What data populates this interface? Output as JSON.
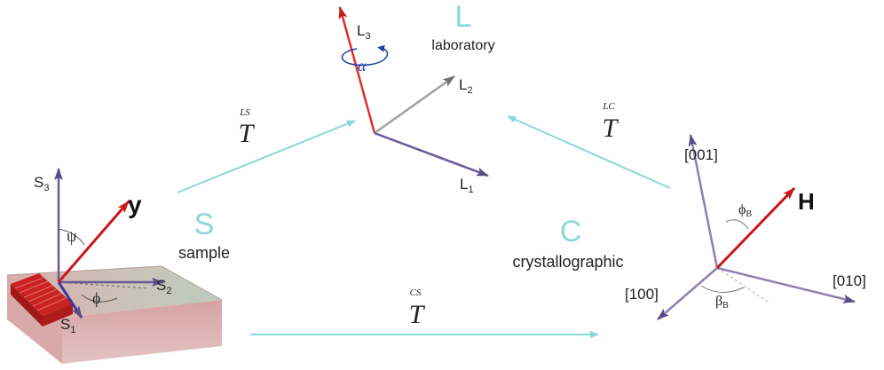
{
  "frames": {
    "laboratory": {
      "letter": "L",
      "name": "laboratory",
      "axes": {
        "a1": "L",
        "a1_sub": "1",
        "a2": "L",
        "a2_sub": "2",
        "a3": "L",
        "a3_sub": "3"
      },
      "rotation": "α"
    },
    "sample": {
      "letter": "S",
      "name": "sample",
      "axes": {
        "a1": "S",
        "a1_sub": "1",
        "a2": "S",
        "a2_sub": "2",
        "a3": "S",
        "a3_sub": "3"
      },
      "vector": "y",
      "angle_psi": "ψ",
      "angle_phi": "ϕ"
    },
    "crystallographic": {
      "letter": "C",
      "name": "crystallographic",
      "axes": {
        "a100": "[100]",
        "a010": "[010]",
        "a001": "[001]"
      },
      "vector": "H",
      "angle_phi": "ϕ",
      "angle_phi_sub": "B",
      "angle_beta": "β",
      "angle_beta_sub": "B"
    }
  },
  "transforms": {
    "ls": {
      "symbol": "T",
      "sup": "LS"
    },
    "lc": {
      "symbol": "T",
      "sup": "LC"
    },
    "cs": {
      "symbol": "T",
      "sup": "CS"
    }
  },
  "colors": {
    "frame_letter": "#8ad8d8",
    "transform_arrow": "#8ad8d8",
    "axis": "#6a5a90",
    "vector": "#d02020",
    "l3_axis": "#e03030",
    "rotation": "#2040a0"
  }
}
